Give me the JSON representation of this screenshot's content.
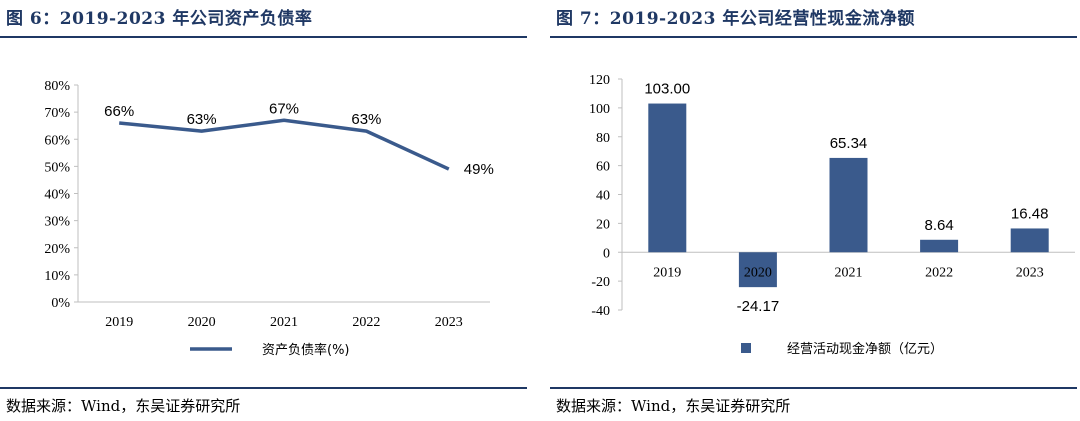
{
  "left": {
    "title": "图 6：2019-2023 年公司资产负债率",
    "source": "数据来源：Wind，东吴证券研究所",
    "chart_data": {
      "type": "line",
      "x": [
        "2019",
        "2020",
        "2021",
        "2022",
        "2023"
      ],
      "series": [
        {
          "name": "资产负债率(%)",
          "values": [
            66,
            63,
            67,
            63,
            49
          ],
          "labels": [
            "66%",
            "63%",
            "67%",
            "63%",
            "49%"
          ],
          "color": "#3a5a8c"
        }
      ],
      "ylim": [
        0,
        80
      ],
      "yticks": [
        0,
        10,
        20,
        30,
        40,
        50,
        60,
        70,
        80
      ],
      "ytick_labels": [
        "0%",
        "10%",
        "20%",
        "30%",
        "40%",
        "50%",
        "60%",
        "70%",
        "80%"
      ],
      "grid": false,
      "legend": "bottom"
    }
  },
  "right": {
    "title": "图 7：2019-2023 年公司经营性现金流净额",
    "source": "数据来源：Wind，东吴证券研究所",
    "chart_data": {
      "type": "bar",
      "categories": [
        "2019",
        "2020",
        "2021",
        "2022",
        "2023"
      ],
      "series": [
        {
          "name": "经营活动现金净额（亿元）",
          "values": [
            103.0,
            -24.17,
            65.34,
            8.64,
            16.48
          ],
          "labels": [
            "103.00",
            "-24.17",
            "65.34",
            "8.64",
            "16.48"
          ],
          "color": "#3a5a8c"
        }
      ],
      "ylim": [
        -40,
        120
      ],
      "yticks": [
        -40,
        -20,
        0,
        20,
        40,
        60,
        80,
        100,
        120
      ],
      "grid": false,
      "legend": "bottom"
    }
  }
}
